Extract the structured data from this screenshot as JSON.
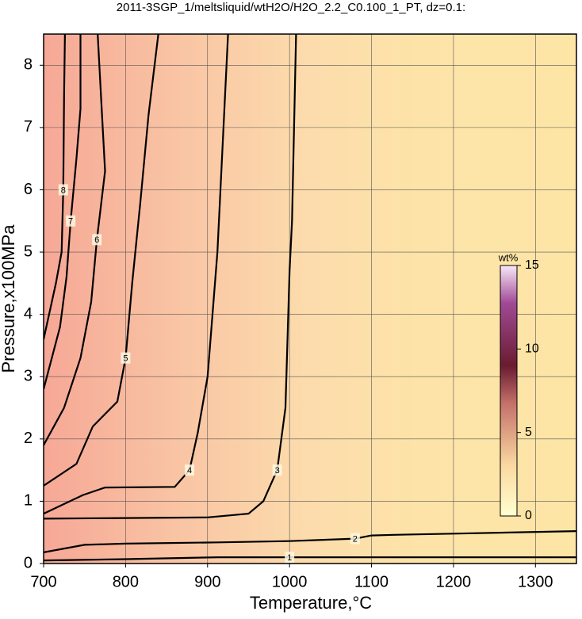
{
  "chart_data": {
    "type": "contour",
    "title": "2011-3SGP_1/meltsliquid/wtH2O/H2O_2.2_C0.100_1_PT, dz=0.1:",
    "x_label": "Temperature,°C",
    "y_label": "Pressure,x100MPa",
    "xlim": [
      700,
      1350
    ],
    "ylim": [
      0,
      8.5
    ],
    "xticks": [
      700,
      800,
      900,
      1000,
      1100,
      1200,
      1300
    ],
    "yticks": [
      0,
      1,
      2,
      3,
      4,
      5,
      6,
      7,
      8
    ],
    "grid": true,
    "line_color": "#000000",
    "contours": [
      {
        "level": 1,
        "x": [
          700,
          800,
          913,
          1000,
          1130,
          1250,
          1350
        ],
        "y": [
          0.05,
          0.07,
          0.1,
          0.1,
          0.1,
          0.1,
          0.1
        ]
      },
      {
        "level": 2,
        "x": [
          700,
          750,
          800,
          913,
          1000,
          1080,
          1100,
          1127,
          1200,
          1350
        ],
        "y": [
          0.18,
          0.3,
          0.32,
          0.34,
          0.36,
          0.4,
          0.45,
          0.46,
          0.48,
          0.52
        ]
      },
      {
        "level": 3,
        "x": [
          700,
          800,
          900,
          950,
          968,
          985,
          995,
          1000,
          1003,
          1008
        ],
        "y": [
          0.72,
          0.73,
          0.74,
          0.8,
          1.0,
          1.5,
          2.5,
          4.7,
          5.5,
          8.5
        ]
      },
      {
        "level": 4,
        "x": [
          700,
          748,
          775,
          860,
          878,
          888,
          900,
          912,
          925
        ],
        "y": [
          0.8,
          1.1,
          1.22,
          1.23,
          1.5,
          2.1,
          3,
          5,
          8.5
        ]
      },
      {
        "level": 5,
        "x": [
          700,
          740,
          760,
          790,
          800,
          808,
          818,
          828,
          840
        ],
        "y": [
          1.25,
          1.6,
          2.2,
          2.6,
          3.3,
          4.5,
          5.8,
          7.2,
          8.5
        ]
      },
      {
        "level": 6,
        "x": [
          700,
          725,
          745,
          758,
          765,
          775,
          770,
          766
        ],
        "y": [
          1.9,
          2.5,
          3.3,
          4.2,
          5.2,
          6.3,
          7.5,
          8.5
        ]
      },
      {
        "level": 7,
        "x": [
          700,
          720,
          728,
          733,
          740,
          745,
          745
        ],
        "y": [
          2.8,
          3.8,
          4.6,
          5.5,
          6.5,
          7.3,
          8.5
        ]
      },
      {
        "level": 8,
        "x": [
          700,
          715,
          722,
          724,
          725,
          726
        ],
        "y": [
          3.6,
          4.5,
          5,
          6,
          7.5,
          8.5
        ]
      }
    ],
    "colorbar": {
      "label": "wt%",
      "lim": [
        0,
        15
      ],
      "ticks": [
        0,
        5,
        10,
        15
      ]
    }
  }
}
